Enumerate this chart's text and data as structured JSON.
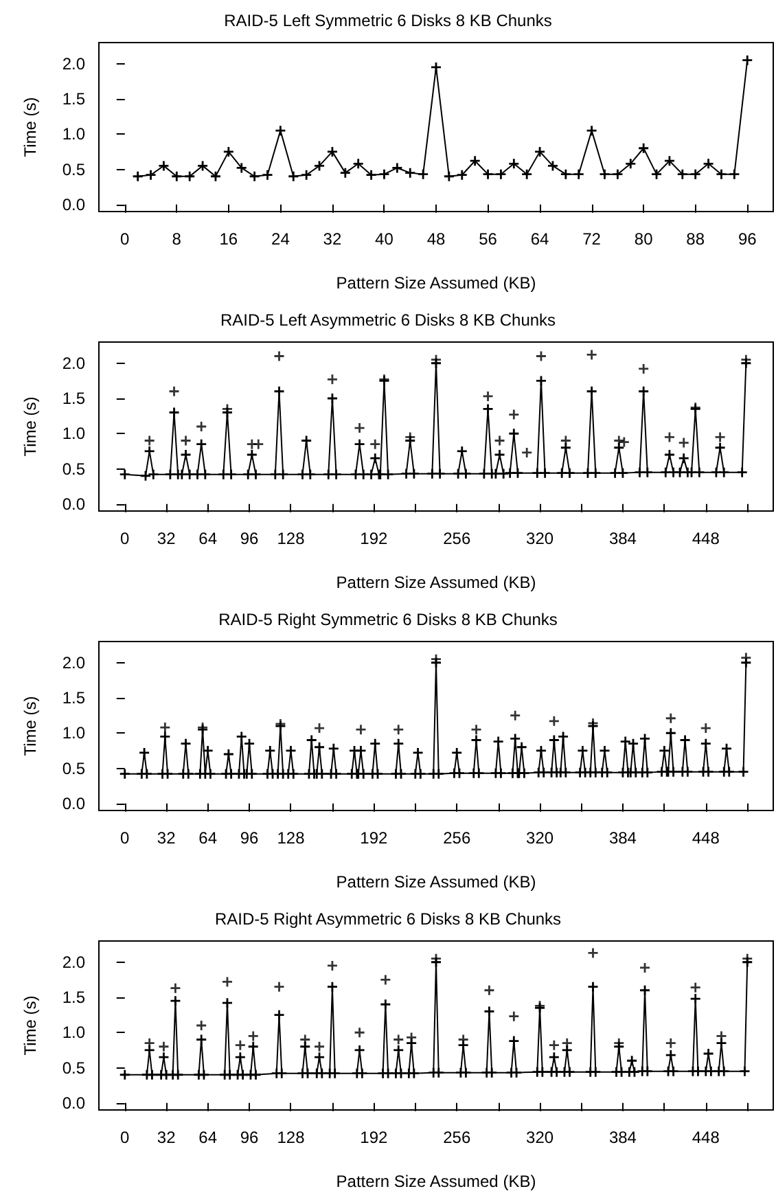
{
  "chart_data": [
    {
      "type": "line",
      "title": "RAID-5 Left Symmetric 6 Disks 8 KB Chunks",
      "xlabel": "Pattern Size Assumed (KB)",
      "ylabel": "Time (s)",
      "marker": "cross",
      "line_style": "solid",
      "xlim": [
        -4,
        100
      ],
      "xticks": [
        0,
        8,
        16,
        24,
        32,
        40,
        48,
        56,
        64,
        72,
        80,
        88,
        96
      ],
      "ylim": [
        -0.1,
        2.3
      ],
      "yticks": [
        {
          "value": 0,
          "label": "0.0"
        },
        {
          "value": 0.5,
          "label": "0.5"
        },
        {
          "value": 1,
          "label": "1.0"
        },
        {
          "value": 1.5,
          "label": "1.5"
        },
        {
          "value": 2,
          "label": "2.0"
        }
      ],
      "series": [
        {
          "color": "#000000",
          "x": [
            2,
            4,
            6,
            8,
            10,
            12,
            14,
            16,
            18,
            20,
            22,
            24,
            26,
            28,
            30,
            32,
            34,
            36,
            38,
            40,
            42,
            44,
            46,
            48,
            50,
            52,
            54,
            56,
            58,
            60,
            62,
            64,
            66,
            68,
            70,
            72,
            74,
            76,
            78,
            80,
            82,
            84,
            86,
            88,
            90,
            92,
            94,
            96
          ],
          "values": [
            0.4,
            0.42,
            0.55,
            0.4,
            0.4,
            0.55,
            0.4,
            0.75,
            0.52,
            0.4,
            0.42,
            1.05,
            0.4,
            0.42,
            0.55,
            0.75,
            0.45,
            0.58,
            0.42,
            0.43,
            0.52,
            0.45,
            0.43,
            1.95,
            0.4,
            0.42,
            0.62,
            0.43,
            0.43,
            0.58,
            0.43,
            0.75,
            0.55,
            0.43,
            0.43,
            1.05,
            0.43,
            0.43,
            0.58,
            0.8,
            0.43,
            0.62,
            0.43,
            0.43,
            0.58,
            0.43,
            0.43,
            2.05
          ]
        }
      ]
    },
    {
      "type": "line",
      "title": "RAID-5 Left Asymmetric 6 Disks 8 KB Chunks",
      "xlabel": "Pattern Size Assumed (KB)",
      "ylabel": "Time (s)",
      "marker": "cross",
      "line_style": "solid",
      "xlim": [
        -20,
        500
      ],
      "xticks": [
        0,
        32,
        64,
        96,
        128,
        {
          "value": 160,
          "label": null
        },
        192,
        {
          "value": 224,
          "label": null
        },
        256,
        {
          "value": 288,
          "label": null
        },
        320,
        {
          "value": 352,
          "label": null
        },
        384,
        {
          "value": 416,
          "label": null
        },
        448,
        {
          "value": 480,
          "label": null
        }
      ],
      "ylim": [
        -0.1,
        2.3
      ],
      "yticks": [
        {
          "value": 0,
          "label": "0.0"
        },
        {
          "value": 0.5,
          "label": "0.5"
        },
        {
          "value": 1,
          "label": "1.0"
        },
        {
          "value": 1.5,
          "label": "1.5"
        },
        {
          "value": 2,
          "label": "2.0"
        }
      ],
      "series": [
        {
          "color": "#000000",
          "x": [
            0,
            16,
            19,
            22,
            35,
            38,
            41,
            44,
            47,
            50,
            56,
            59,
            62,
            76,
            79,
            82,
            95,
            98,
            101,
            116,
            119,
            122,
            137,
            140,
            143,
            157,
            160,
            163,
            178,
            181,
            184,
            190,
            193,
            196,
            197,
            200,
            203,
            217,
            220,
            223,
            237,
            240,
            243,
            257,
            260,
            263,
            277,
            280,
            283,
            286,
            289,
            292,
            297,
            300,
            303,
            318,
            321,
            324,
            337,
            340,
            343,
            357,
            360,
            363,
            378,
            381,
            384,
            397,
            400,
            403,
            417,
            420,
            423,
            428,
            431,
            434,
            437,
            440,
            443,
            456,
            459,
            462,
            476,
            479
          ],
          "values": [
            0.42,
            0.4,
            0.75,
            0.42,
            0.42,
            1.3,
            0.42,
            0.42,
            0.7,
            0.42,
            0.42,
            0.85,
            0.42,
            0.42,
            1.3,
            0.42,
            0.42,
            0.7,
            0.42,
            0.42,
            1.6,
            0.42,
            0.42,
            0.9,
            0.42,
            0.42,
            1.5,
            0.42,
            0.42,
            0.85,
            0.42,
            0.42,
            0.65,
            0.42,
            0.42,
            1.75,
            0.42,
            0.43,
            0.9,
            0.43,
            0.43,
            2.0,
            0.43,
            0.43,
            0.75,
            0.43,
            0.43,
            1.35,
            0.43,
            0.43,
            0.7,
            0.43,
            0.44,
            1.0,
            0.44,
            0.44,
            1.75,
            0.44,
            0.44,
            0.8,
            0.44,
            0.44,
            1.6,
            0.44,
            0.44,
            0.8,
            0.44,
            0.45,
            1.6,
            0.45,
            0.45,
            0.7,
            0.45,
            0.45,
            0.65,
            0.45,
            0.45,
            1.35,
            0.45,
            0.45,
            0.8,
            0.45,
            0.45,
            2.0
          ]
        },
        {
          "type": "scatter",
          "color": "#000000",
          "x": [
            19,
            38,
            47,
            59,
            79,
            98,
            103,
            119,
            160,
            181,
            193,
            200,
            220,
            240,
            280,
            289,
            300,
            310,
            321,
            340,
            360,
            381,
            385,
            400,
            420,
            431,
            440,
            459,
            479
          ],
          "values": [
            0.9,
            1.6,
            0.9,
            1.1,
            1.35,
            0.85,
            0.85,
            2.1,
            1.77,
            1.08,
            0.85,
            1.77,
            0.95,
            2.05,
            1.53,
            0.9,
            1.27,
            0.73,
            2.1,
            0.9,
            2.12,
            0.9,
            0.88,
            1.92,
            0.95,
            0.87,
            1.37,
            0.95,
            2.05
          ]
        }
      ]
    },
    {
      "type": "line",
      "title": "RAID-5 Right Symmetric 6 Disks 8 KB Chunks",
      "xlabel": "Pattern Size Assumed (KB)",
      "ylabel": "Time (s)",
      "marker": "cross",
      "line_style": "solid",
      "xlim": [
        -20,
        500
      ],
      "xticks": [
        0,
        32,
        64,
        96,
        128,
        {
          "value": 160,
          "label": null
        },
        192,
        {
          "value": 224,
          "label": null
        },
        256,
        {
          "value": 288,
          "label": null
        },
        320,
        {
          "value": 352,
          "label": null
        },
        384,
        {
          "value": 416,
          "label": null
        },
        448,
        {
          "value": 480,
          "label": null
        }
      ],
      "ylim": [
        -0.1,
        2.3
      ],
      "yticks": [
        {
          "value": 0,
          "label": "0.0"
        },
        {
          "value": 0.5,
          "label": "0.5"
        },
        {
          "value": 1,
          "label": "1.0"
        },
        {
          "value": 1.5,
          "label": "1.5"
        },
        {
          "value": 2,
          "label": "2.0"
        }
      ],
      "series": [
        {
          "color": "#000000",
          "x": [
            0,
            13,
            15,
            17,
            29,
            31,
            33,
            45,
            47,
            49,
            58,
            60,
            62,
            64,
            66,
            78,
            80,
            82,
            88,
            90,
            92,
            94,
            96,
            98,
            110,
            112,
            114,
            118,
            120,
            122,
            126,
            128,
            130,
            142,
            144,
            146,
            148,
            150,
            152,
            159,
            161,
            163,
            175,
            177,
            179,
            180,
            182,
            184,
            191,
            193,
            195,
            209,
            211,
            213,
            224,
            226,
            228,
            238,
            240,
            242,
            254,
            256,
            258,
            269,
            271,
            273,
            286,
            288,
            290,
            299,
            301,
            303,
            304,
            306,
            308,
            319,
            321,
            323,
            329,
            331,
            333,
            336,
            338,
            340,
            351,
            353,
            355,
            359,
            361,
            363,
            368,
            370,
            372,
            384,
            386,
            388,
            390,
            392,
            394,
            399,
            401,
            403,
            414,
            416,
            418,
            419,
            421,
            423,
            430,
            432,
            434,
            446,
            448,
            450,
            462,
            464,
            466,
            477,
            479
          ],
          "values": [
            0.42,
            0.42,
            0.72,
            0.42,
            0.42,
            0.95,
            0.42,
            0.42,
            0.85,
            0.42,
            0.42,
            1.05,
            0.42,
            0.75,
            0.42,
            0.42,
            0.7,
            0.42,
            0.42,
            0.95,
            0.42,
            0.42,
            0.85,
            0.42,
            0.42,
            0.75,
            0.42,
            0.42,
            1.1,
            0.42,
            0.42,
            0.75,
            0.42,
            0.42,
            0.9,
            0.42,
            0.42,
            0.8,
            0.42,
            0.42,
            0.78,
            0.42,
            0.42,
            0.75,
            0.42,
            0.42,
            0.75,
            0.42,
            0.42,
            0.85,
            0.42,
            0.42,
            0.85,
            0.42,
            0.42,
            0.72,
            0.42,
            0.42,
            2.0,
            0.42,
            0.43,
            0.72,
            0.43,
            0.43,
            0.9,
            0.43,
            0.43,
            0.88,
            0.43,
            0.43,
            0.92,
            0.43,
            0.43,
            0.8,
            0.43,
            0.44,
            0.75,
            0.44,
            0.44,
            0.9,
            0.44,
            0.44,
            0.95,
            0.44,
            0.44,
            0.75,
            0.44,
            0.44,
            1.1,
            0.44,
            0.44,
            0.75,
            0.44,
            0.44,
            0.88,
            0.44,
            0.44,
            0.85,
            0.44,
            0.44,
            0.92,
            0.44,
            0.45,
            0.75,
            0.45,
            0.45,
            1.0,
            0.45,
            0.45,
            0.9,
            0.45,
            0.45,
            0.85,
            0.45,
            0.45,
            0.78,
            0.45,
            0.45,
            2.0
          ]
        },
        {
          "type": "scatter",
          "color": "#000000",
          "x": [
            31,
            60,
            120,
            150,
            182,
            211,
            240,
            271,
            301,
            331,
            361,
            421,
            448,
            479
          ],
          "values": [
            1.08,
            1.08,
            1.13,
            1.07,
            1.05,
            1.05,
            2.05,
            1.05,
            1.25,
            1.17,
            1.14,
            1.21,
            1.07,
            2.07
          ]
        }
      ]
    },
    {
      "type": "line",
      "title": "RAID-5 Right Asymmetric 6 Disks 8 KB Chunks",
      "xlabel": "Pattern Size Assumed (KB)",
      "ylabel": "Time (s)",
      "marker": "cross",
      "line_style": "solid",
      "xlim": [
        -20,
        500
      ],
      "xticks": [
        0,
        32,
        64,
        96,
        128,
        {
          "value": 160,
          "label": null
        },
        192,
        {
          "value": 224,
          "label": null
        },
        256,
        {
          "value": 288,
          "label": null
        },
        320,
        {
          "value": 352,
          "label": null
        },
        384,
        {
          "value": 416,
          "label": null
        },
        448,
        {
          "value": 480,
          "label": null
        }
      ],
      "ylim": [
        -0.1,
        2.3
      ],
      "yticks": [
        {
          "value": 0,
          "label": "0.0"
        },
        {
          "value": 0.5,
          "label": "0.5"
        },
        {
          "value": 1,
          "label": "1.0"
        },
        {
          "value": 1.5,
          "label": "1.5"
        },
        {
          "value": 2,
          "label": "2.0"
        }
      ],
      "series": [
        {
          "color": "#000000",
          "x": [
            0,
            17,
            19,
            21,
            28,
            30,
            32,
            37,
            39,
            41,
            57,
            59,
            61,
            77,
            79,
            81,
            87,
            89,
            91,
            97,
            99,
            101,
            117,
            119,
            121,
            137,
            139,
            141,
            148,
            150,
            152,
            158,
            160,
            162,
            179,
            181,
            183,
            199,
            201,
            203,
            209,
            211,
            213,
            219,
            221,
            223,
            238,
            240,
            242,
            259,
            261,
            263,
            279,
            281,
            283,
            298,
            300,
            302,
            318,
            320,
            322,
            329,
            331,
            333,
            339,
            341,
            343,
            359,
            361,
            363,
            379,
            381,
            383,
            389,
            391,
            393,
            399,
            401,
            403,
            419,
            421,
            423,
            438,
            440,
            442,
            448,
            450,
            452,
            458,
            460,
            462,
            478,
            480
          ],
          "values": [
            0.4,
            0.4,
            0.75,
            0.4,
            0.4,
            0.65,
            0.4,
            0.4,
            1.45,
            0.4,
            0.4,
            0.9,
            0.4,
            0.4,
            1.42,
            0.4,
            0.4,
            0.65,
            0.4,
            0.4,
            0.8,
            0.4,
            0.42,
            1.25,
            0.42,
            0.42,
            0.8,
            0.42,
            0.42,
            0.65,
            0.42,
            0.42,
            1.65,
            0.42,
            0.42,
            0.75,
            0.42,
            0.42,
            1.4,
            0.42,
            0.42,
            0.75,
            0.42,
            0.42,
            0.85,
            0.42,
            0.43,
            2.0,
            0.43,
            0.43,
            0.82,
            0.43,
            0.43,
            1.3,
            0.43,
            0.43,
            0.88,
            0.43,
            0.44,
            1.35,
            0.44,
            0.44,
            0.65,
            0.44,
            0.44,
            0.75,
            0.44,
            0.44,
            1.65,
            0.44,
            0.44,
            0.8,
            0.44,
            0.44,
            0.6,
            0.44,
            0.45,
            1.6,
            0.45,
            0.45,
            0.68,
            0.45,
            0.45,
            1.48,
            0.45,
            0.45,
            0.7,
            0.45,
            0.45,
            0.85,
            0.45,
            0.45,
            2.0
          ]
        },
        {
          "type": "scatter",
          "color": "#000000",
          "x": [
            19,
            30,
            39,
            59,
            79,
            89,
            99,
            119,
            139,
            150,
            160,
            181,
            201,
            211,
            221,
            240,
            261,
            281,
            300,
            320,
            331,
            341,
            361,
            381,
            401,
            421,
            440,
            460,
            480
          ],
          "values": [
            0.85,
            0.8,
            1.63,
            1.1,
            1.72,
            0.82,
            0.95,
            1.65,
            0.9,
            0.8,
            1.95,
            1.0,
            1.75,
            0.9,
            0.93,
            2.05,
            0.9,
            1.6,
            1.23,
            1.38,
            0.82,
            0.85,
            2.13,
            0.85,
            1.92,
            0.85,
            1.64,
            0.95,
            2.05
          ]
        }
      ]
    }
  ]
}
